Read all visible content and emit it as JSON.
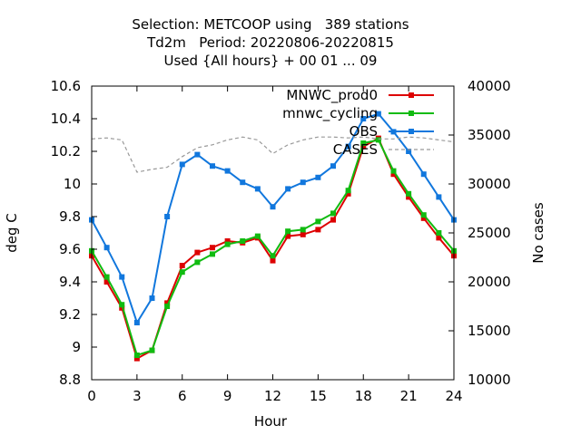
{
  "chart_data": {
    "type": "line",
    "title_lines": [
      "Selection: METCOOP using   389 stations",
      "Td2m   Period: 20220806-20220815",
      "Used {All hours} + 00 01 ... 09"
    ],
    "xlabel": "Hour",
    "ylabel": "deg C",
    "y2label": "No cases",
    "xlim": [
      0,
      24
    ],
    "ylim": [
      8.8,
      10.6
    ],
    "y2lim": [
      10000,
      40000
    ],
    "x_ticks": [
      0,
      3,
      6,
      9,
      12,
      15,
      18,
      21,
      24
    ],
    "y_ticks": [
      "8.8",
      "9",
      "9.2",
      "9.4",
      "9.6",
      "9.8",
      "10",
      "10.2",
      "10.4",
      "10.6"
    ],
    "y2_ticks": [
      "10000",
      "15000",
      "20000",
      "25000",
      "30000",
      "35000",
      "40000"
    ],
    "x": [
      0,
      1,
      2,
      3,
      4,
      5,
      6,
      7,
      8,
      9,
      10,
      11,
      12,
      13,
      14,
      15,
      16,
      17,
      18,
      19,
      20,
      21,
      22,
      23,
      24
    ],
    "series": [
      {
        "name": "MNWC_prod0",
        "color": "#dd0000",
        "axis": "y",
        "values": [
          9.56,
          9.4,
          9.24,
          8.93,
          8.98,
          9.27,
          9.5,
          9.58,
          9.61,
          9.65,
          9.64,
          9.67,
          9.53,
          9.68,
          9.69,
          9.72,
          9.78,
          9.94,
          10.23,
          10.28,
          10.06,
          9.92,
          9.79,
          9.67,
          9.56
        ]
      },
      {
        "name": "mnwc_cycling",
        "color": "#11bb11",
        "axis": "y",
        "values": [
          9.59,
          9.43,
          9.26,
          8.95,
          8.98,
          9.25,
          9.46,
          9.52,
          9.57,
          9.63,
          9.65,
          9.68,
          9.56,
          9.71,
          9.72,
          9.77,
          9.82,
          9.96,
          10.25,
          10.27,
          10.08,
          9.94,
          9.81,
          9.7,
          9.59
        ]
      },
      {
        "name": "OBS",
        "color": "#1177dd",
        "axis": "y",
        "values": [
          9.78,
          9.61,
          9.43,
          9.15,
          9.3,
          9.8,
          10.12,
          10.18,
          10.11,
          10.08,
          10.01,
          9.97,
          9.86,
          9.97,
          10.01,
          10.04,
          10.11,
          10.23,
          10.4,
          10.43,
          10.32,
          10.2,
          10.06,
          9.92,
          9.78
        ]
      },
      {
        "name": "CASES",
        "color": "#999999",
        "axis": "y2",
        "dashed": true,
        "values": [
          34600,
          34700,
          34500,
          31200,
          31500,
          31700,
          32800,
          33700,
          34000,
          34500,
          34800,
          34500,
          33100,
          34000,
          34500,
          34800,
          34800,
          34700,
          34800,
          34600,
          34600,
          34800,
          34700,
          34500,
          34300
        ]
      }
    ]
  }
}
